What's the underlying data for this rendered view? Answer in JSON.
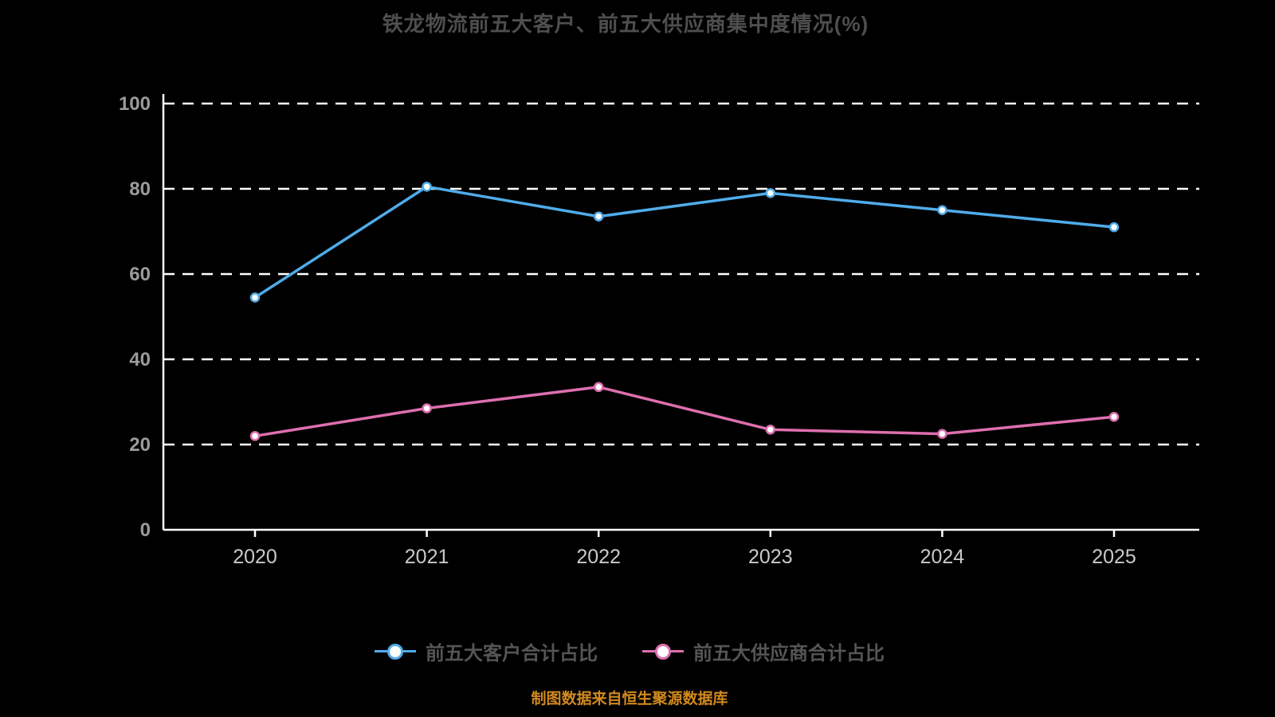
{
  "chart_data": {
    "type": "line",
    "title": "铁龙物流前五大客户、前五大供应商集中度情况(%)",
    "categories": [
      "2020",
      "2021",
      "2022",
      "2023",
      "2024",
      "2025"
    ],
    "series": [
      {
        "name": "前五大客户合计占比",
        "color": "#4FACEA",
        "values": [
          54.5,
          80.5,
          73.5,
          79,
          75,
          71
        ]
      },
      {
        "name": "前五大供应商合计占比",
        "color": "#DD6FAE",
        "values": [
          22,
          28.5,
          33.5,
          23.5,
          22.5,
          26.5
        ]
      }
    ],
    "ylim": [
      0,
      100
    ],
    "yticks": [
      0,
      20,
      40,
      60,
      80,
      100
    ],
    "grid": "horizontal-dashed",
    "legend_position": "bottom",
    "footer": "制图数据来自恒生聚源数据库",
    "colors": {
      "background": "#000000",
      "axis": "#ffffff",
      "gridline": "#ffffff",
      "y_tick_label": "#9b9b9b",
      "x_tick_label": "#c9c9c9",
      "title": "#4e4e4e",
      "legend_text": "#555555",
      "footer_text": "#d2891e"
    }
  }
}
